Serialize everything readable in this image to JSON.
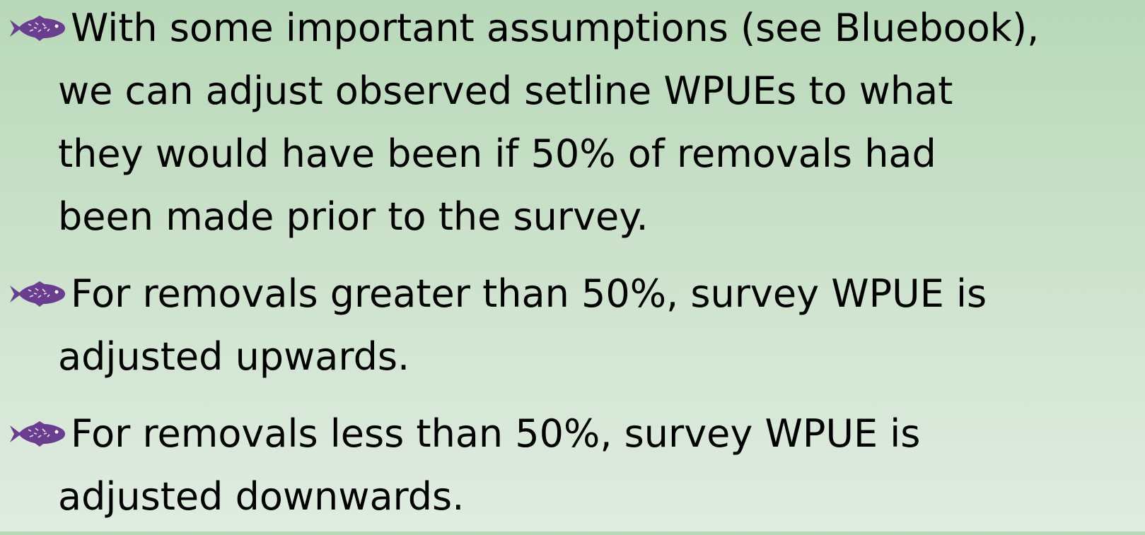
{
  "bullets": [
    {
      "lines": [
        "With some important assumptions (see Bluebook),",
        "we can adjust observed setline WPUEs to what",
        "they would have been if 50% of removals had",
        "been made prior to the survey."
      ]
    },
    {
      "lines": [
        "For removals greater than 50%, survey WPUE is",
        "adjusted upwards."
      ]
    },
    {
      "lines": [
        "For removals less than 50%, survey WPUE is",
        "adjusted downwards."
      ]
    }
  ]
}
